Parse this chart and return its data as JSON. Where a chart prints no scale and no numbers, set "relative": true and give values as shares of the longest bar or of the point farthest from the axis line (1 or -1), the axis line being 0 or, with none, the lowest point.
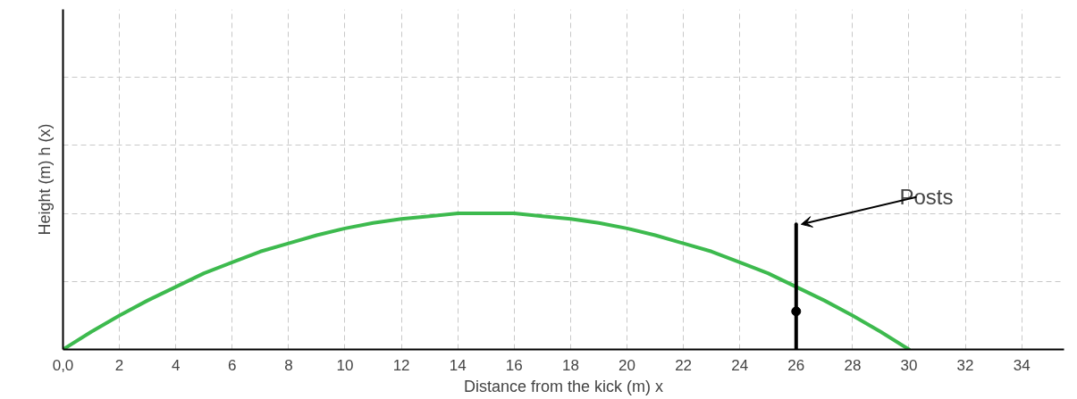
{
  "chart_data": {
    "type": "line",
    "relative": true,
    "xlabel": "Distance from the kick (m) x",
    "ylabel": "Height (m) h (x)",
    "xlim": [
      0,
      35.5
    ],
    "xticks": [
      {
        "value": 0,
        "label": "0,0"
      },
      2,
      4,
      6,
      8,
      10,
      12,
      14,
      16,
      18,
      20,
      22,
      24,
      26,
      28,
      30,
      32,
      34
    ],
    "grid": true,
    "series": [
      {
        "color": "#3dba4e",
        "x": [
          0,
          1,
          2,
          3,
          4,
          5,
          6,
          7,
          8,
          9,
          10,
          11,
          12,
          13,
          14,
          15,
          16,
          17,
          18,
          19,
          20,
          21,
          22,
          23,
          24,
          25,
          26,
          27,
          28,
          29,
          30
        ],
        "values": [
          0,
          0.13,
          0.25,
          0.36,
          0.46,
          0.56,
          0.64,
          0.72,
          0.78,
          0.84,
          0.89,
          0.93,
          0.96,
          0.98,
          1.0,
          1.0,
          1.0,
          0.98,
          0.96,
          0.93,
          0.89,
          0.84,
          0.78,
          0.72,
          0.64,
          0.56,
          0.46,
          0.36,
          0.25,
          0.13,
          0
        ]
      },
      {
        "color": "#000000",
        "x": [
          26,
          26
        ],
        "values": [
          0,
          0.92
        ]
      },
      {
        "type": "scatter",
        "color": "#000000",
        "x": [
          26
        ],
        "values": [
          0.28
        ],
        "marker": "circle"
      }
    ],
    "annotations": [
      {
        "text": "Posts",
        "x": 26,
        "y": 0.92
      }
    ]
  }
}
